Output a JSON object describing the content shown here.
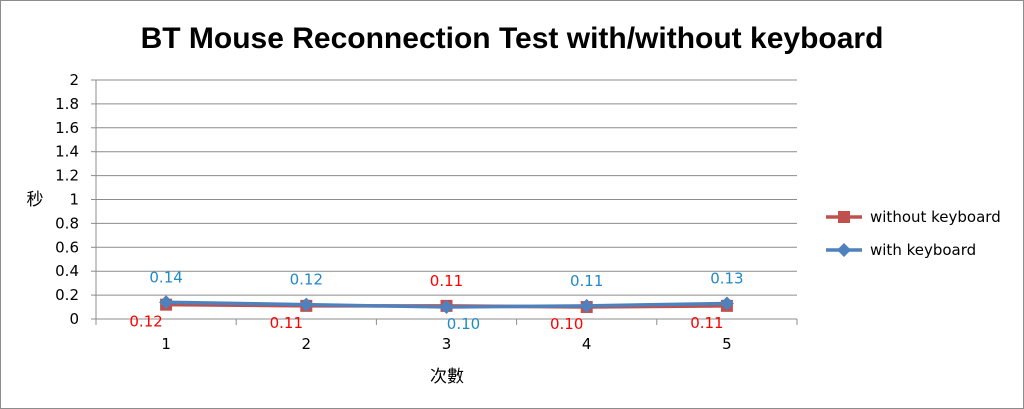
{
  "chart_data": {
    "type": "line",
    "title": "BT Mouse Reconnection Test with/without keyboard",
    "xlabel": "次數",
    "ylabel": "秒",
    "categories": [
      "1",
      "2",
      "3",
      "4",
      "5"
    ],
    "y_ticks": [
      "0",
      "0.2",
      "0.4",
      "0.6",
      "0.8",
      "1",
      "1.2",
      "1.4",
      "1.6",
      "1.8",
      "2"
    ],
    "ylim": [
      0,
      2
    ],
    "grid": true,
    "legend_position": "right",
    "series": [
      {
        "name": "without keyboard",
        "color": "#c0504d",
        "label_color": "#ff0000",
        "marker": "square",
        "values": [
          0.12,
          0.11,
          0.11,
          0.1,
          0.11
        ],
        "labels": [
          "0.12",
          "0.11",
          "0.11",
          "0.10",
          "0.11"
        ]
      },
      {
        "name": "with keyboard",
        "color": "#4f81bd",
        "label_color": "#1f8ac8",
        "marker": "diamond",
        "values": [
          0.14,
          0.12,
          0.1,
          0.11,
          0.13
        ],
        "labels": [
          "0.14",
          "0.12",
          "0.10",
          "0.11",
          "0.13"
        ]
      }
    ]
  }
}
